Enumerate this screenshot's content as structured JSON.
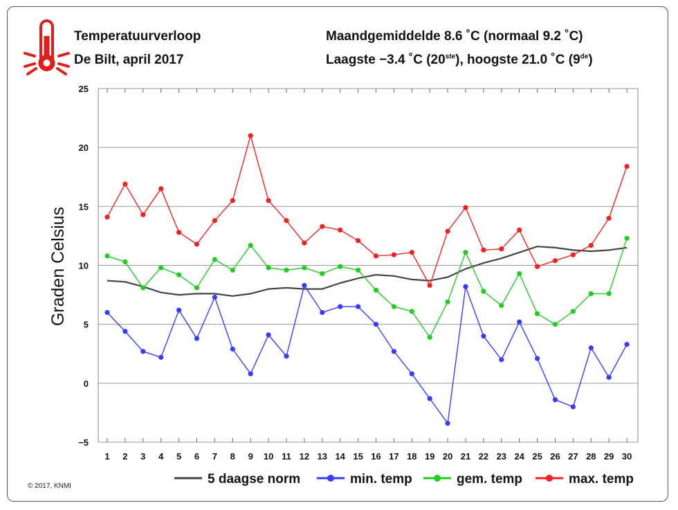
{
  "header": {
    "title_line1": "Temperatuurverloop",
    "title_line2": "De Bilt, april 2017",
    "stats_line1": "Maandgemiddelde 8.6 ˚C (normaal 9.2 ˚C)",
    "stats_line2_a": "Laagste −3.4 ˚C (20",
    "stats_line2_sup1": "ste",
    "stats_line2_b": "), hoogste 21.0 ˚C (9",
    "stats_line2_sup2": "de",
    "stats_line2_c": ")"
  },
  "icon": "thermometer-icon",
  "copyright": "© 2017, KNMI",
  "chart_data": {
    "type": "line",
    "ylabel": "Graden Celsius",
    "xlabel": "",
    "ylim": [
      -5,
      25
    ],
    "xlim": [
      1,
      30
    ],
    "yticks": [
      -5,
      0,
      5,
      10,
      15,
      20,
      25
    ],
    "x": [
      1,
      2,
      3,
      4,
      5,
      6,
      7,
      8,
      9,
      10,
      11,
      12,
      13,
      14,
      15,
      16,
      17,
      18,
      19,
      20,
      21,
      22,
      23,
      24,
      25,
      26,
      27,
      28,
      29,
      30
    ],
    "grid": true,
    "legend_position": "bottom",
    "series": [
      {
        "name": "5 daagse norm",
        "color": "#444444",
        "markers": false,
        "values": [
          8.7,
          8.6,
          8.2,
          7.7,
          7.5,
          7.6,
          7.6,
          7.4,
          7.6,
          8.0,
          8.1,
          8.0,
          8.0,
          8.5,
          8.9,
          9.2,
          9.1,
          8.8,
          8.7,
          9.0,
          9.7,
          10.2,
          10.6,
          11.1,
          11.6,
          11.5,
          11.3,
          11.2,
          11.3,
          11.5
        ]
      },
      {
        "name": "min. temp",
        "color": "#3a3aff",
        "markers": true,
        "values": [
          6.0,
          4.4,
          2.7,
          2.2,
          6.2,
          3.8,
          7.3,
          2.9,
          0.8,
          4.1,
          2.3,
          8.3,
          6.0,
          6.5,
          6.5,
          5.0,
          2.7,
          0.8,
          -1.3,
          -3.4,
          8.2,
          4.0,
          2.0,
          5.2,
          2.1,
          -1.4,
          -2.0,
          3.0,
          0.5,
          3.3
        ]
      },
      {
        "name": "gem. temp",
        "color": "#22cc22",
        "markers": true,
        "values": [
          10.8,
          10.3,
          8.1,
          9.8,
          9.2,
          8.1,
          10.5,
          9.6,
          11.7,
          9.8,
          9.6,
          9.8,
          9.3,
          9.9,
          9.6,
          7.9,
          6.5,
          6.1,
          3.9,
          6.9,
          11.1,
          7.8,
          6.6,
          9.3,
          5.9,
          5.0,
          6.1,
          7.6,
          7.6,
          12.3
        ]
      },
      {
        "name": "max. temp",
        "color": "#ee2222",
        "markers": true,
        "values": [
          14.1,
          16.9,
          14.3,
          16.5,
          12.8,
          11.8,
          13.8,
          15.5,
          21.0,
          15.5,
          13.8,
          11.9,
          13.3,
          13.0,
          12.1,
          10.8,
          10.9,
          11.1,
          8.3,
          12.9,
          14.9,
          11.3,
          11.4,
          13.0,
          9.9,
          10.4,
          10.9,
          11.7,
          14.0,
          18.4
        ]
      }
    ]
  }
}
